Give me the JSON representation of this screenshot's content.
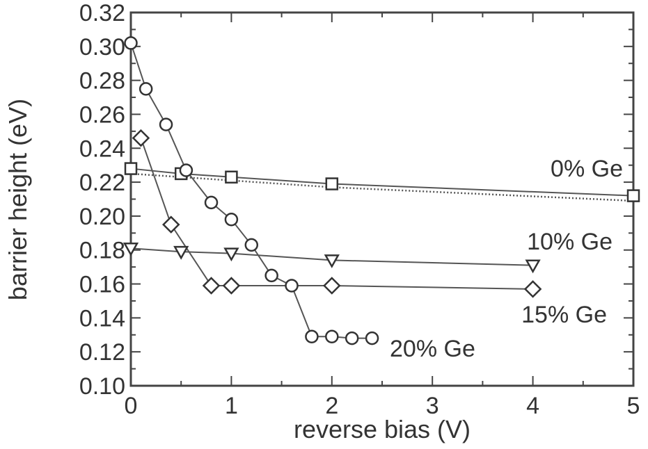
{
  "chart_data": {
    "type": "line",
    "xlabel": "reverse bias (V)",
    "ylabel": "barrier height (eV)",
    "xlim": [
      0,
      5
    ],
    "ylim": [
      0.1,
      0.32
    ],
    "x_ticks": [
      "0",
      "1",
      "2",
      "3",
      "4",
      "5"
    ],
    "y_ticks": [
      "0.10",
      "0.12",
      "0.14",
      "0.16",
      "0.18",
      "0.20",
      "0.22",
      "0.24",
      "0.26",
      "0.28",
      "0.30",
      "0.32"
    ],
    "grid": false,
    "series": [
      {
        "name": "0% Ge",
        "marker": "square",
        "x": [
          0.0,
          0.5,
          1.0,
          2.0,
          5.0
        ],
        "y": [
          0.228,
          0.225,
          0.223,
          0.219,
          0.212
        ]
      },
      {
        "marker": "none",
        "line": "dotted",
        "x": [
          0.0,
          1.0,
          2.0,
          5.0
        ],
        "y": [
          0.225,
          0.221,
          0.217,
          0.209
        ]
      },
      {
        "name": "10% Ge",
        "marker": "triangle-down",
        "x": [
          0.0,
          0.5,
          1.0,
          2.0,
          4.0
        ],
        "y": [
          0.181,
          0.179,
          0.178,
          0.174,
          0.171
        ]
      },
      {
        "name": "15% Ge",
        "marker": "diamond",
        "x": [
          0.1,
          0.4,
          0.8,
          1.0,
          2.0,
          4.0
        ],
        "y": [
          0.246,
          0.195,
          0.159,
          0.159,
          0.159,
          0.157
        ]
      },
      {
        "name": "20% Ge",
        "marker": "circle",
        "x": [
          0.0,
          0.15,
          0.35,
          0.55,
          0.8,
          1.0,
          1.2,
          1.4,
          1.6,
          1.8,
          2.0,
          2.2,
          2.4
        ],
        "y": [
          0.302,
          0.275,
          0.254,
          0.227,
          0.208,
          0.198,
          0.183,
          0.165,
          0.159,
          0.129,
          0.129,
          0.128,
          0.128
        ]
      }
    ]
  }
}
